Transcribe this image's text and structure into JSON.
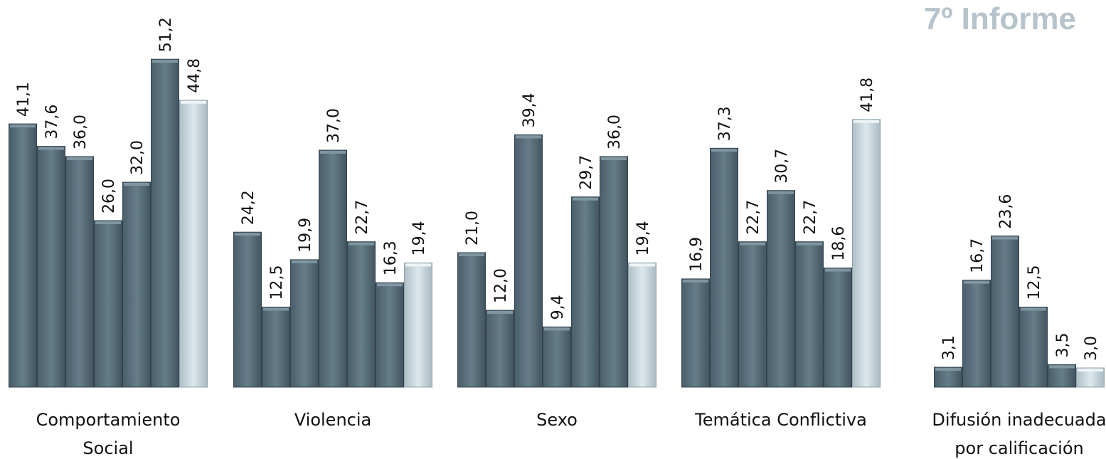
{
  "report_title": "7º Informe",
  "chart_data": {
    "type": "bar",
    "title": "",
    "xlabel": "",
    "ylabel": "",
    "ylim": [
      0,
      52
    ],
    "grid": false,
    "legend": "none",
    "colors": {
      "dark": "#5a6f7c",
      "light": "#c4d4db"
    },
    "groups": [
      {
        "category_lines": [
          "Comportamiento",
          "Social"
        ],
        "values": [
          "41,1",
          "37,6",
          "36,0",
          "26,0",
          "32,0",
          "51,2",
          "44,8"
        ],
        "highlight_last": true
      },
      {
        "category_lines": [
          "Violencia"
        ],
        "values": [
          "24,2",
          "12,5",
          "19,9",
          "37,0",
          "22,7",
          "16,3",
          "19,4"
        ],
        "highlight_last": true
      },
      {
        "category_lines": [
          "Sexo"
        ],
        "values": [
          "21,0",
          "12,0",
          "39,4",
          "9,4",
          "29,7",
          "36,0",
          "19,4"
        ],
        "highlight_last": true
      },
      {
        "category_lines": [
          "Temática Conflictiva"
        ],
        "values": [
          "16,9",
          "37,3",
          "22,7",
          "30,7",
          "22,7",
          "18,6",
          "41,8"
        ],
        "highlight_last": true
      },
      {
        "category_lines": [
          "Difusión inadecuada",
          "por calificación"
        ],
        "values": [
          "3,1",
          "16,7",
          "23,6",
          "12,5",
          "3,5",
          "3,0"
        ],
        "highlight_last": true
      }
    ]
  }
}
